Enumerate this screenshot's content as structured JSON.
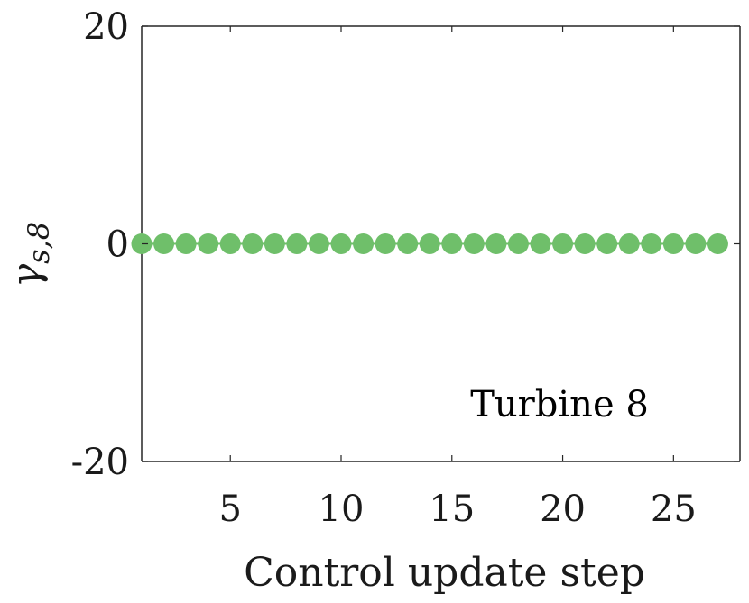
{
  "chart_data": {
    "type": "line",
    "title": "",
    "xlabel": "Control update step",
    "ylabel": "γs,8",
    "ylabel_parts": {
      "main": "γ",
      "sub": "s,8"
    },
    "annotation": "Turbine 8",
    "xlim": [
      1,
      28
    ],
    "ylim": [
      -20,
      20
    ],
    "xticks": [
      5,
      10,
      15,
      20,
      25
    ],
    "yticks": [
      -20,
      0,
      20
    ],
    "ytick_labels": [
      "-20",
      "0",
      "20"
    ],
    "grid": false,
    "legend": "none",
    "series": [
      {
        "color": "#6fbf6a",
        "marker": "circle",
        "x": [
          1,
          2,
          3,
          4,
          5,
          6,
          7,
          8,
          9,
          10,
          11,
          12,
          13,
          14,
          15,
          16,
          17,
          18,
          19,
          20,
          21,
          22,
          23,
          24,
          25,
          26,
          27
        ],
        "y": [
          0,
          0,
          0,
          0,
          0,
          0,
          0,
          0,
          0,
          0,
          0,
          0,
          0,
          0,
          0,
          0,
          0,
          0,
          0,
          0,
          0,
          0,
          0,
          0,
          0,
          0,
          0
        ]
      }
    ]
  }
}
